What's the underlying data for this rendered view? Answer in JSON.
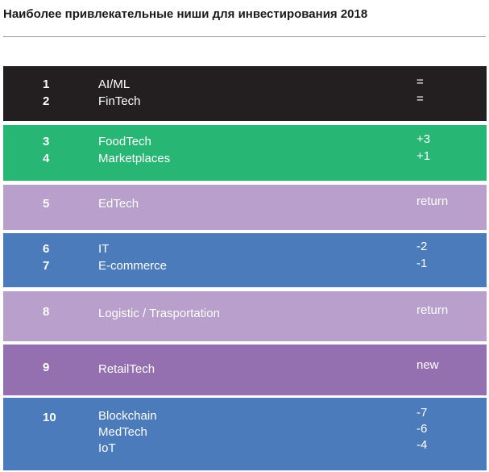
{
  "title": "Наиболее привлекательные ниши для инвестирования 2018",
  "colors": {
    "black": "#231f20",
    "green": "#27b673",
    "lavender": "#b99fcb",
    "blue": "#4b7bbb",
    "purple": "#9470b0"
  },
  "chart_data": {
    "type": "table",
    "title": "Наиболее привлекательные ниши для инвестирования 2018",
    "groups": [
      {
        "ranks": [
          "1",
          "2"
        ],
        "niches": [
          "AI/ML",
          "FinTech"
        ],
        "changes": [
          "=",
          "="
        ],
        "color": "#231f20"
      },
      {
        "ranks": [
          "3",
          "4"
        ],
        "niches": [
          "FoodTech",
          "Marketplaces"
        ],
        "changes": [
          "+3",
          "+1"
        ],
        "color": "#27b673"
      },
      {
        "ranks": [
          "5"
        ],
        "niches": [
          "EdTech"
        ],
        "changes": [
          "return"
        ],
        "color": "#b99fcb"
      },
      {
        "ranks": [
          "6",
          "7"
        ],
        "niches": [
          "IT",
          "E-commerce"
        ],
        "changes": [
          "-2",
          "-1"
        ],
        "color": "#4b7bbb"
      },
      {
        "ranks": [
          "8"
        ],
        "niches": [
          "Logistic / Trasportation"
        ],
        "changes": [
          "return"
        ],
        "color": "#b99fcb"
      },
      {
        "ranks": [
          "9"
        ],
        "niches": [
          "RetailTech"
        ],
        "changes": [
          "new"
        ],
        "color": "#9470b0"
      },
      {
        "ranks": [
          "10"
        ],
        "niches": [
          "Blockchain",
          "MedTech",
          "IoT"
        ],
        "changes": [
          "-7",
          "-6",
          "-4"
        ],
        "color": "#4b7bbb"
      }
    ]
  }
}
